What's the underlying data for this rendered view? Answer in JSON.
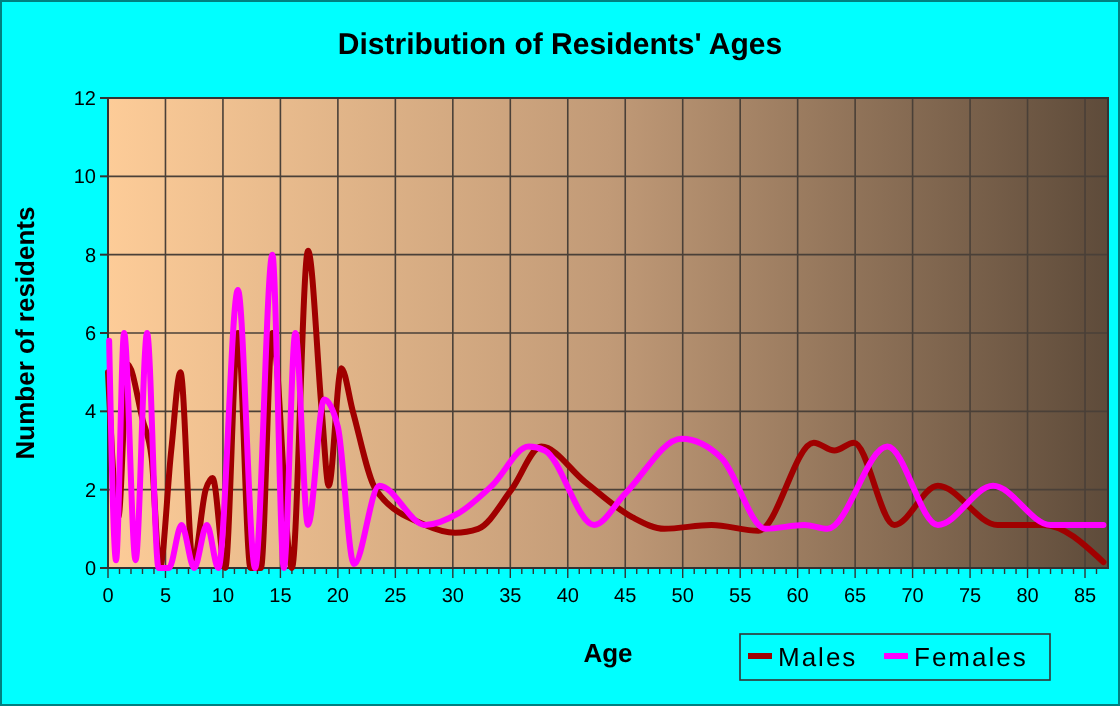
{
  "chart_data": {
    "type": "line",
    "title": "Distribution of Residents' Ages",
    "xlabel": "Age",
    "ylabel": "Number of residents",
    "xlim": [
      0,
      87
    ],
    "xticks": [
      0,
      5,
      10,
      15,
      20,
      25,
      30,
      35,
      40,
      45,
      50,
      55,
      60,
      65,
      70,
      75,
      80,
      85
    ],
    "ylim": [
      0,
      12
    ],
    "yticks": [
      0,
      2,
      4,
      6,
      8,
      10,
      12
    ],
    "grid": true,
    "legend": "bottom right",
    "marker": "none",
    "line_style": "solid",
    "series": [
      {
        "name": "Males",
        "color": "#a00000",
        "x": [
          0,
          0.9,
          1.7,
          3,
          3.8,
          4.5,
          5.5,
          6.3,
          7.4,
          8.5,
          9.1,
          10.2,
          11.3,
          12.4,
          13.3,
          14.3,
          16,
          17.4,
          18.6,
          19.2,
          20.3,
          21.3,
          23.3,
          27.6,
          30.2,
          32.2,
          35.1,
          37.7,
          41.5,
          45.6,
          48.4,
          52.5,
          56.6,
          61.4,
          63.2,
          64.9,
          68.4,
          72.2,
          77.4,
          81.4,
          86.6
        ],
        "values": [
          5,
          1.3,
          5.2,
          3.8,
          2.8,
          0,
          3,
          5,
          0.1,
          2,
          2.3,
          0,
          6,
          0,
          0,
          6,
          0,
          8.1,
          4,
          2.1,
          5.1,
          4,
          2,
          1.1,
          0.9,
          1,
          2,
          3.1,
          2.2,
          1.3,
          1,
          1.1,
          0.95,
          3.2,
          3,
          3.2,
          1.1,
          2.1,
          1.1,
          1.1,
          0.15
        ]
      },
      {
        "name": "Females",
        "color": "#ff00ff",
        "x": [
          0.1,
          0.7,
          1.4,
          2.4,
          3.4,
          4.4,
          5.3,
          6.4,
          7.5,
          8.6,
          9.6,
          11.3,
          12.8,
          14.3,
          15.3,
          16.3,
          17.4,
          18.8,
          20,
          21.4,
          23.6,
          27.6,
          30.5,
          33.4,
          36.6,
          38,
          42.3,
          45,
          49.9,
          53.4,
          57.2,
          60.6,
          62.6,
          67.8,
          72.2,
          77,
          82,
          86.6
        ],
        "values": [
          5.8,
          0.2,
          6,
          0.2,
          6,
          0,
          0,
          1.1,
          0,
          1.1,
          0,
          7.1,
          0,
          8,
          0,
          6,
          1.1,
          4.3,
          3.6,
          0.1,
          2.1,
          1.1,
          1.4,
          2.1,
          3.1,
          3,
          1.1,
          1.9,
          3.3,
          2.8,
          1,
          1.1,
          1,
          3.1,
          1.1,
          2.1,
          1.1,
          1.1
        ]
      }
    ]
  }
}
